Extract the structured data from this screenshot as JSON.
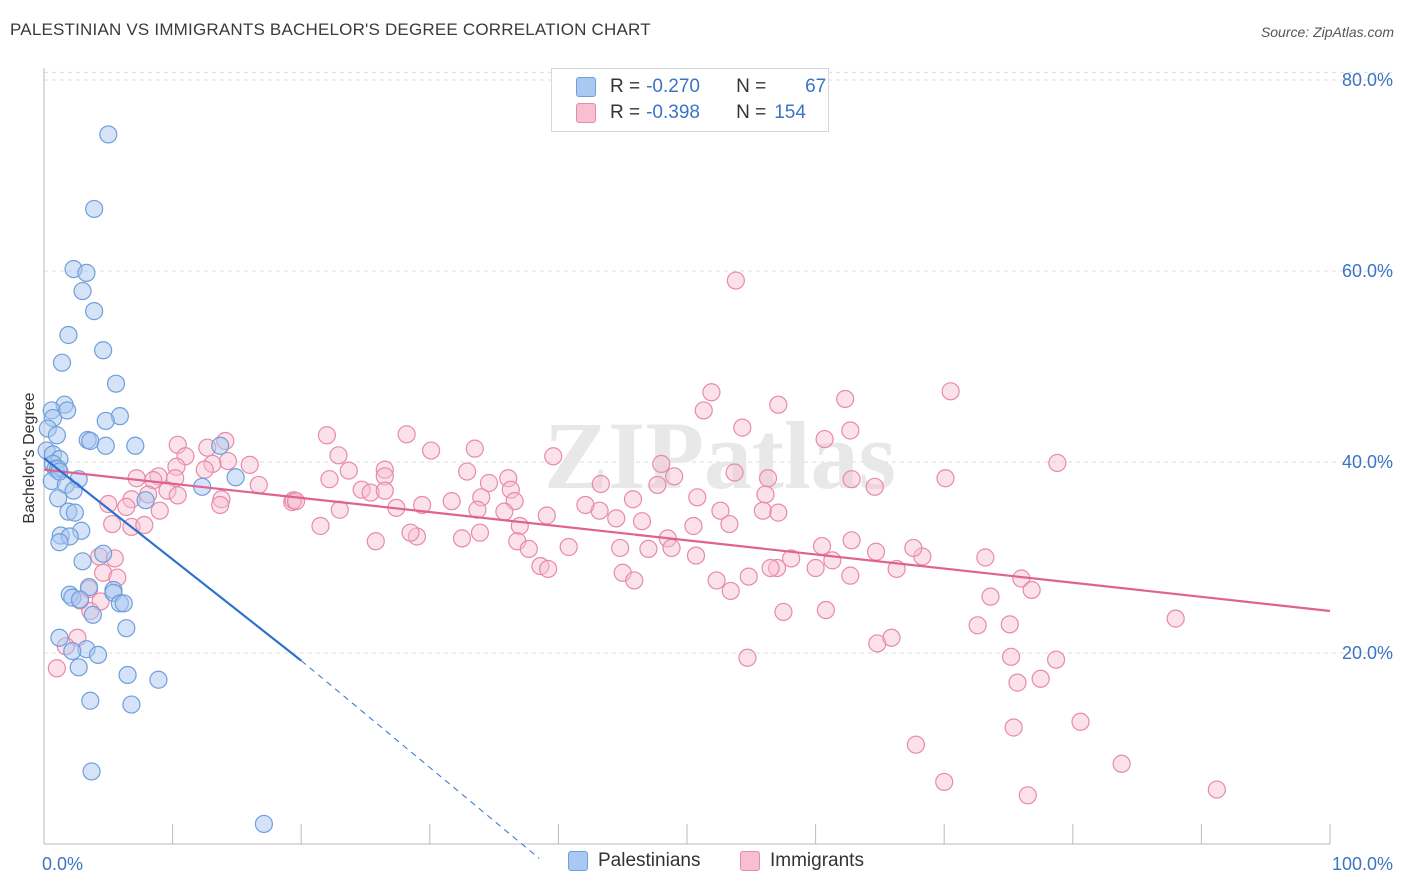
{
  "title": "PALESTINIAN VS IMMIGRANTS BACHELOR'S DEGREE CORRELATION CHART",
  "source": "Source: ZipAtlas.com",
  "watermark": "ZIPatlas",
  "legend": {
    "row1": {
      "r_label": "R =",
      "r_value": "-0.270",
      "n_label": "N =",
      "n_value": "67"
    },
    "row2": {
      "r_label": "R =",
      "r_value": "-0.398",
      "n_label": "N =",
      "n_value": "154"
    }
  },
  "bottom_legend": {
    "palestinians": "Palestinians",
    "immigrants": "Immigrants"
  },
  "colors": {
    "blue_fill": "#a9c8f2",
    "blue_stroke": "#6f9fdb",
    "blue_line": "#2f6fcf",
    "pink_fill": "#f7bfd0",
    "pink_stroke": "#e88aa8",
    "pink_line": "#e0628f",
    "axis_label": "#3a74c4"
  },
  "chart_data": {
    "type": "scatter",
    "title": "PALESTINIAN VS IMMIGRANTS BACHELOR'S DEGREE CORRELATION CHART",
    "xlabel": "",
    "ylabel": "Bachelor's Degree",
    "xlim": [
      0,
      100
    ],
    "ylim": [
      0,
      82
    ],
    "x_tick_labels": [
      "0.0%",
      "100.0%"
    ],
    "y_ticks": [
      20,
      40,
      60,
      80
    ],
    "y_tick_labels": [
      "20.0%",
      "40.0%",
      "60.0%",
      "80.0%"
    ],
    "series": [
      {
        "name": "Palestinians",
        "points": [
          [
            5.0,
            74.3
          ],
          [
            3.9,
            66.5
          ],
          [
            2.3,
            60.2
          ],
          [
            3.3,
            59.8
          ],
          [
            3.0,
            57.9
          ],
          [
            3.9,
            55.8
          ],
          [
            1.9,
            53.3
          ],
          [
            4.6,
            51.7
          ],
          [
            1.4,
            50.4
          ],
          [
            5.6,
            48.2
          ],
          [
            1.6,
            46.0
          ],
          [
            0.6,
            45.4
          ],
          [
            1.8,
            45.4
          ],
          [
            0.7,
            44.6
          ],
          [
            5.9,
            44.8
          ],
          [
            4.8,
            44.3
          ],
          [
            0.3,
            43.5
          ],
          [
            1.0,
            42.8
          ],
          [
            3.4,
            42.3
          ],
          [
            3.6,
            42.2
          ],
          [
            4.8,
            41.7
          ],
          [
            7.1,
            41.7
          ],
          [
            13.7,
            41.7
          ],
          [
            0.2,
            41.2
          ],
          [
            0.7,
            40.8
          ],
          [
            1.2,
            40.3
          ],
          [
            0.7,
            39.8
          ],
          [
            0.9,
            39.3
          ],
          [
            1.1,
            39.3
          ],
          [
            14.9,
            38.4
          ],
          [
            2.7,
            38.2
          ],
          [
            0.6,
            38.0
          ],
          [
            1.7,
            37.6
          ],
          [
            12.3,
            37.4
          ],
          [
            2.3,
            37.0
          ],
          [
            1.1,
            36.2
          ],
          [
            7.9,
            36.0
          ],
          [
            1.9,
            34.8
          ],
          [
            2.4,
            34.7
          ],
          [
            2.9,
            32.8
          ],
          [
            1.3,
            32.3
          ],
          [
            2.0,
            32.2
          ],
          [
            1.2,
            31.6
          ],
          [
            4.6,
            30.4
          ],
          [
            3.0,
            29.6
          ],
          [
            3.5,
            26.9
          ],
          [
            5.4,
            26.6
          ],
          [
            2.0,
            26.1
          ],
          [
            5.4,
            26.3
          ],
          [
            2.2,
            25.8
          ],
          [
            2.8,
            25.6
          ],
          [
            5.9,
            25.2
          ],
          [
            6.2,
            25.2
          ],
          [
            3.8,
            24.0
          ],
          [
            6.4,
            22.6
          ],
          [
            1.2,
            21.6
          ],
          [
            3.3,
            20.4
          ],
          [
            2.2,
            20.2
          ],
          [
            4.2,
            19.8
          ],
          [
            6.5,
            17.7
          ],
          [
            8.9,
            17.2
          ],
          [
            2.7,
            18.5
          ],
          [
            3.6,
            15.0
          ],
          [
            6.8,
            14.6
          ],
          [
            3.7,
            7.6
          ],
          [
            17.1,
            2.1
          ],
          [
            1.2,
            39.0
          ]
        ]
      },
      {
        "name": "Immigrants",
        "points": [
          [
            53.8,
            59.0
          ],
          [
            51.9,
            47.3
          ],
          [
            70.5,
            47.4
          ],
          [
            62.3,
            46.6
          ],
          [
            57.1,
            46.0
          ],
          [
            51.3,
            45.4
          ],
          [
            54.3,
            43.6
          ],
          [
            62.7,
            43.3
          ],
          [
            14.1,
            42.2
          ],
          [
            60.7,
            42.4
          ],
          [
            28.2,
            42.9
          ],
          [
            22.0,
            42.8
          ],
          [
            10.4,
            41.8
          ],
          [
            12.7,
            41.5
          ],
          [
            30.1,
            41.2
          ],
          [
            33.5,
            41.4
          ],
          [
            11.0,
            40.6
          ],
          [
            22.9,
            40.7
          ],
          [
            14.3,
            40.1
          ],
          [
            13.1,
            39.8
          ],
          [
            16.0,
            39.7
          ],
          [
            39.6,
            40.6
          ],
          [
            48.0,
            39.8
          ],
          [
            78.8,
            39.9
          ],
          [
            10.3,
            39.5
          ],
          [
            12.5,
            39.2
          ],
          [
            23.7,
            39.1
          ],
          [
            26.5,
            39.2
          ],
          [
            8.9,
            38.5
          ],
          [
            32.9,
            39.0
          ],
          [
            53.7,
            38.9
          ],
          [
            7.2,
            38.3
          ],
          [
            10.2,
            38.3
          ],
          [
            26.5,
            38.5
          ],
          [
            56.3,
            38.3
          ],
          [
            36.1,
            38.3
          ],
          [
            49.0,
            38.5
          ],
          [
            70.1,
            38.3
          ],
          [
            8.5,
            38.1
          ],
          [
            22.2,
            38.2
          ],
          [
            34.6,
            37.8
          ],
          [
            43.3,
            37.7
          ],
          [
            47.7,
            37.6
          ],
          [
            16.7,
            37.6
          ],
          [
            24.7,
            37.1
          ],
          [
            9.6,
            37.0
          ],
          [
            8.1,
            36.6
          ],
          [
            36.3,
            37.1
          ],
          [
            25.4,
            36.8
          ],
          [
            64.6,
            37.4
          ],
          [
            10.4,
            36.5
          ],
          [
            6.8,
            36.1
          ],
          [
            13.8,
            36.1
          ],
          [
            34.0,
            36.3
          ],
          [
            56.1,
            36.6
          ],
          [
            45.8,
            36.1
          ],
          [
            50.8,
            36.3
          ],
          [
            19.3,
            35.8
          ],
          [
            36.6,
            35.9
          ],
          [
            29.4,
            35.5
          ],
          [
            27.4,
            35.2
          ],
          [
            55.9,
            34.9
          ],
          [
            5.0,
            35.6
          ],
          [
            6.4,
            35.3
          ],
          [
            52.6,
            34.9
          ],
          [
            43.2,
            34.9
          ],
          [
            39.1,
            34.4
          ],
          [
            44.5,
            34.1
          ],
          [
            57.1,
            34.7
          ],
          [
            13.7,
            35.5
          ],
          [
            19.4,
            36.0
          ],
          [
            35.8,
            34.8
          ],
          [
            46.5,
            33.8
          ],
          [
            5.3,
            33.5
          ],
          [
            6.8,
            33.2
          ],
          [
            50.5,
            33.3
          ],
          [
            37.0,
            33.3
          ],
          [
            53.3,
            33.5
          ],
          [
            36.8,
            31.7
          ],
          [
            29.0,
            32.2
          ],
          [
            28.5,
            32.6
          ],
          [
            33.9,
            32.6
          ],
          [
            32.5,
            32.0
          ],
          [
            48.5,
            32.0
          ],
          [
            62.8,
            31.8
          ],
          [
            60.5,
            31.2
          ],
          [
            37.7,
            30.9
          ],
          [
            40.8,
            31.1
          ],
          [
            44.8,
            31.0
          ],
          [
            47.0,
            30.9
          ],
          [
            50.7,
            30.2
          ],
          [
            58.1,
            29.9
          ],
          [
            61.3,
            29.7
          ],
          [
            64.7,
            30.6
          ],
          [
            68.3,
            30.1
          ],
          [
            4.3,
            30.1
          ],
          [
            5.5,
            29.9
          ],
          [
            4.6,
            28.4
          ],
          [
            5.7,
            27.9
          ],
          [
            25.8,
            31.7
          ],
          [
            9.0,
            34.9
          ],
          [
            7.8,
            33.4
          ],
          [
            21.5,
            33.3
          ],
          [
            45.0,
            28.4
          ],
          [
            45.9,
            27.6
          ],
          [
            52.3,
            27.6
          ],
          [
            53.4,
            26.5
          ],
          [
            57.0,
            28.9
          ],
          [
            60.0,
            28.9
          ],
          [
            62.7,
            28.1
          ],
          [
            38.6,
            29.1
          ],
          [
            60.8,
            24.5
          ],
          [
            66.3,
            28.8
          ],
          [
            57.5,
            24.3
          ],
          [
            39.2,
            28.8
          ],
          [
            3.6,
            24.4
          ],
          [
            3.5,
            26.7
          ],
          [
            4.4,
            25.4
          ],
          [
            2.8,
            25.5
          ],
          [
            67.6,
            31.0
          ],
          [
            73.2,
            30.0
          ],
          [
            73.6,
            25.9
          ],
          [
            72.6,
            22.9
          ],
          [
            75.1,
            23.0
          ],
          [
            76.0,
            27.8
          ],
          [
            76.8,
            26.6
          ],
          [
            88.0,
            23.6
          ],
          [
            2.6,
            21.6
          ],
          [
            1.7,
            20.7
          ],
          [
            1.0,
            18.4
          ],
          [
            64.8,
            21.0
          ],
          [
            65.9,
            21.6
          ],
          [
            75.2,
            19.6
          ],
          [
            78.7,
            19.3
          ],
          [
            75.7,
            16.9
          ],
          [
            77.5,
            17.3
          ],
          [
            54.7,
            19.5
          ],
          [
            67.8,
            10.4
          ],
          [
            80.6,
            12.8
          ],
          [
            75.4,
            12.2
          ],
          [
            83.8,
            8.4
          ],
          [
            70.0,
            6.5
          ],
          [
            76.5,
            5.1
          ],
          [
            91.2,
            5.7
          ],
          [
            62.8,
            38.2
          ],
          [
            54.8,
            28.0
          ],
          [
            26.5,
            37.0
          ],
          [
            19.6,
            35.9
          ],
          [
            31.7,
            35.9
          ],
          [
            42.1,
            35.5
          ],
          [
            56.5,
            28.9
          ],
          [
            33.7,
            35.0
          ],
          [
            23.0,
            35.0
          ],
          [
            48.8,
            31.0
          ]
        ]
      }
    ],
    "trend_lines": [
      {
        "series": "Palestinians",
        "x": [
          0,
          20
        ],
        "y": [
          40.4,
          19.2
        ],
        "dashed_extension_x": [
          20,
          38.5
        ],
        "dashed_extension_y": [
          19.2,
          -1.5
        ]
      },
      {
        "series": "Immigrants",
        "x": [
          0,
          100
        ],
        "y": [
          39.2,
          24.4
        ]
      }
    ]
  }
}
